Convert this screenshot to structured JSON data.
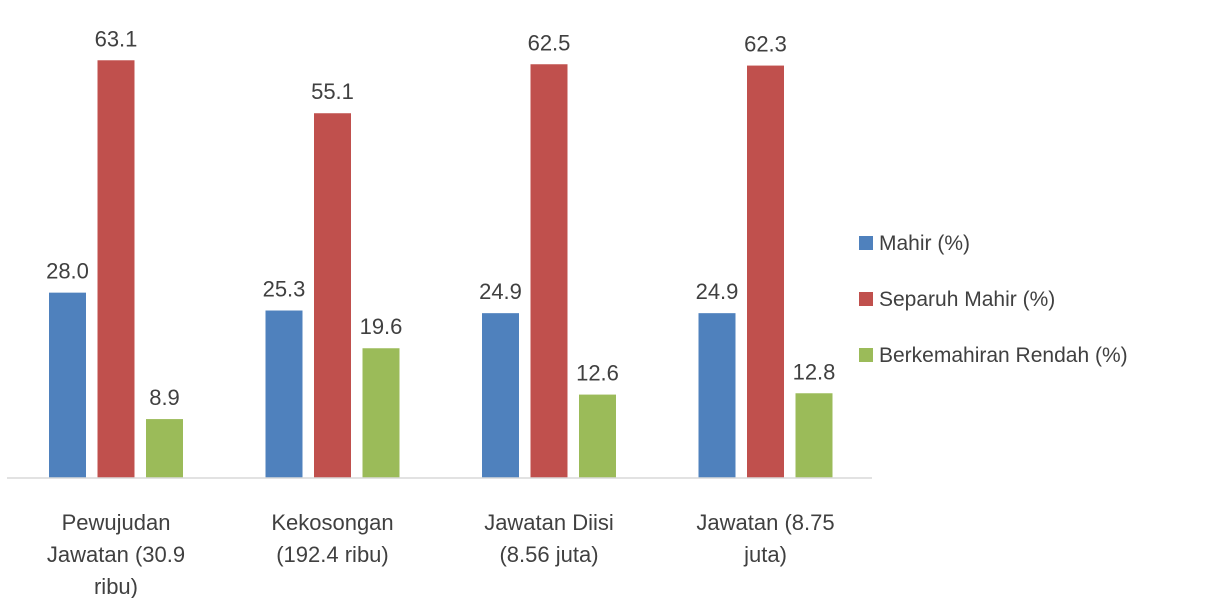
{
  "chart_data": {
    "type": "bar",
    "title": "",
    "xlabel": "",
    "ylabel": "",
    "ylim": [
      0,
      70
    ],
    "grid": false,
    "legend_position": "right",
    "categories": [
      [
        "Pewujudan",
        "Jawatan (30.9",
        "ribu)"
      ],
      [
        "Kekosongan",
        "(192.4 ribu)"
      ],
      [
        "Jawatan Diisi",
        "(8.56 juta)"
      ],
      [
        "Jawatan (8.75",
        "juta)"
      ]
    ],
    "series": [
      {
        "name": "Mahir (%)",
        "color": "#4f81bd",
        "values": [
          28.0,
          25.3,
          24.9,
          24.9
        ]
      },
      {
        "name": "Separuh Mahir (%)",
        "color": "#c0504d",
        "values": [
          63.1,
          55.1,
          62.5,
          62.3
        ]
      },
      {
        "name": "Berkemahiran Rendah (%)",
        "color": "#9bbb59",
        "values": [
          8.9,
          19.6,
          12.6,
          12.8
        ]
      }
    ]
  }
}
